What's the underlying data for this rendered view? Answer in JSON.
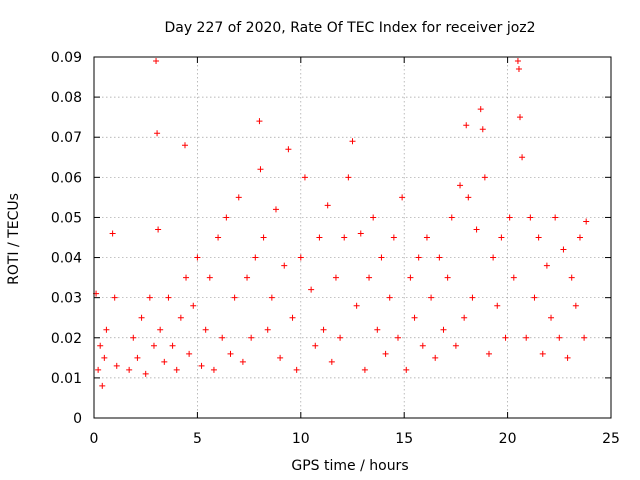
{
  "chart_data": {
    "type": "scatter",
    "title": "Day 227 of 2020, Rate Of TEC Index for receiver joz2",
    "xlabel": "GPS time / hours",
    "ylabel": "ROTI / TECUs",
    "xlim": [
      0,
      25
    ],
    "ylim": [
      0,
      0.09
    ],
    "xticks": [
      0,
      5,
      10,
      15,
      20,
      25
    ],
    "yticks": [
      0,
      0.01,
      0.02,
      0.03,
      0.04,
      0.05,
      0.06,
      0.07,
      0.08,
      0.09
    ],
    "xtick_labels": [
      "0",
      "5",
      "10",
      "15",
      "20",
      "25"
    ],
    "ytick_labels": [
      "0",
      "0.01",
      "0.02",
      "0.03",
      "0.04",
      "0.05",
      "0.06",
      "0.07",
      "0.08",
      "0.09"
    ],
    "grid": true,
    "marker": "+",
    "color": "#ff0000",
    "series": [
      {
        "name": "ROTI",
        "x": [
          0.1,
          0.2,
          0.3,
          0.4,
          0.5,
          0.6,
          0.9,
          1.0,
          1.1,
          1.7,
          1.9,
          2.1,
          2.3,
          2.5,
          2.7,
          2.9,
          3.0,
          3.05,
          3.1,
          3.2,
          3.4,
          3.6,
          3.8,
          4.0,
          4.2,
          4.4,
          4.45,
          4.6,
          4.8,
          5.0,
          5.2,
          5.4,
          5.6,
          5.8,
          6.0,
          6.2,
          6.4,
          6.6,
          6.8,
          7.0,
          7.2,
          7.4,
          7.6,
          7.8,
          8.0,
          8.05,
          8.2,
          8.4,
          8.6,
          8.8,
          9.0,
          9.2,
          9.4,
          9.6,
          9.8,
          10.0,
          10.2,
          10.5,
          10.7,
          10.9,
          11.1,
          11.3,
          11.5,
          11.7,
          11.9,
          12.1,
          12.3,
          12.5,
          12.7,
          12.9,
          13.1,
          13.3,
          13.5,
          13.7,
          13.9,
          14.1,
          14.3,
          14.5,
          14.7,
          14.9,
          15.1,
          15.3,
          15.5,
          15.7,
          15.9,
          16.1,
          16.3,
          16.5,
          16.7,
          16.9,
          17.1,
          17.3,
          17.5,
          17.7,
          17.9,
          18.0,
          18.1,
          18.3,
          18.5,
          18.7,
          18.8,
          18.9,
          19.1,
          19.3,
          19.5,
          19.7,
          19.9,
          20.1,
          20.3,
          20.5,
          20.55,
          20.6,
          20.7,
          20.9,
          21.1,
          21.3,
          21.5,
          21.7,
          21.9,
          22.1,
          22.3,
          22.5,
          22.7,
          22.9,
          23.1,
          23.3,
          23.5,
          23.7,
          23.8
        ],
        "y": [
          0.031,
          0.012,
          0.018,
          0.008,
          0.015,
          0.022,
          0.046,
          0.03,
          0.013,
          0.012,
          0.02,
          0.015,
          0.025,
          0.011,
          0.03,
          0.018,
          0.089,
          0.071,
          0.047,
          0.022,
          0.014,
          0.03,
          0.018,
          0.012,
          0.025,
          0.068,
          0.035,
          0.016,
          0.028,
          0.04,
          0.013,
          0.022,
          0.035,
          0.012,
          0.045,
          0.02,
          0.05,
          0.016,
          0.03,
          0.055,
          0.014,
          0.035,
          0.02,
          0.04,
          0.074,
          0.062,
          0.045,
          0.022,
          0.03,
          0.052,
          0.015,
          0.038,
          0.067,
          0.025,
          0.012,
          0.04,
          0.06,
          0.032,
          0.018,
          0.045,
          0.022,
          0.053,
          0.014,
          0.035,
          0.02,
          0.045,
          0.06,
          0.069,
          0.028,
          0.046,
          0.012,
          0.035,
          0.05,
          0.022,
          0.04,
          0.016,
          0.03,
          0.045,
          0.02,
          0.055,
          0.012,
          0.035,
          0.025,
          0.04,
          0.018,
          0.045,
          0.03,
          0.015,
          0.04,
          0.022,
          0.035,
          0.05,
          0.018,
          0.058,
          0.025,
          0.073,
          0.055,
          0.03,
          0.047,
          0.077,
          0.072,
          0.06,
          0.016,
          0.04,
          0.028,
          0.045,
          0.02,
          0.05,
          0.035,
          0.089,
          0.087,
          0.075,
          0.065,
          0.02,
          0.05,
          0.03,
          0.045,
          0.016,
          0.038,
          0.025,
          0.05,
          0.02,
          0.042,
          0.015,
          0.035,
          0.028,
          0.045,
          0.02,
          0.049
        ]
      }
    ]
  }
}
